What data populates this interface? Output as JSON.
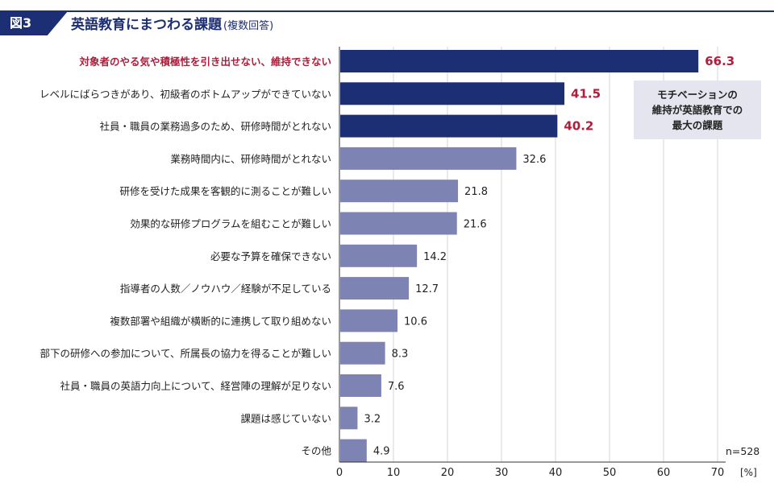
{
  "header": {
    "figure_label": "図3",
    "title": "英語教育にまつわる課題",
    "subtitle": "(複数回答)"
  },
  "callout": {
    "lines": [
      "モチベーションの",
      "維持が英語教育での",
      "最大の課題"
    ]
  },
  "note": "n=528",
  "colors": {
    "primary": "#1c2f74",
    "secondary": "#7d84b3",
    "highlight_text": "#b01e3c"
  },
  "chart_data": {
    "type": "bar",
    "orientation": "horizontal",
    "categories": [
      "対象者のやる気や積極性を引き出せない、維持できない",
      "レベルにばらつきがあり、初級者のボトムアップができていない",
      "社員・職員の業務過多のため、研修時間がとれない",
      "業務時間内に、研修時間がとれない",
      "研修を受けた成果を客観的に測ることが難しい",
      "効果的な研修プログラムを組むことが難しい",
      "必要な予算を確保できない",
      "指導者の人数／ノウハウ／経験が不足している",
      "複数部署や組織が横断的に連携して取り組めない",
      "部下の研修への参加について、所属長の協力を得ることが難しい",
      "社員・職員の英語力向上について、経営陣の理解が足りない",
      "課題は感じていない",
      "その他"
    ],
    "values": [
      66.3,
      41.5,
      40.2,
      32.6,
      21.8,
      21.6,
      14.2,
      12.7,
      10.6,
      8.3,
      7.6,
      3.2,
      4.9
    ],
    "highlight_top": 3,
    "xlim": [
      0,
      70
    ],
    "xticks": [
      0,
      10,
      20,
      30,
      40,
      50,
      60,
      70
    ],
    "xunit": "[%]",
    "grid": true
  }
}
